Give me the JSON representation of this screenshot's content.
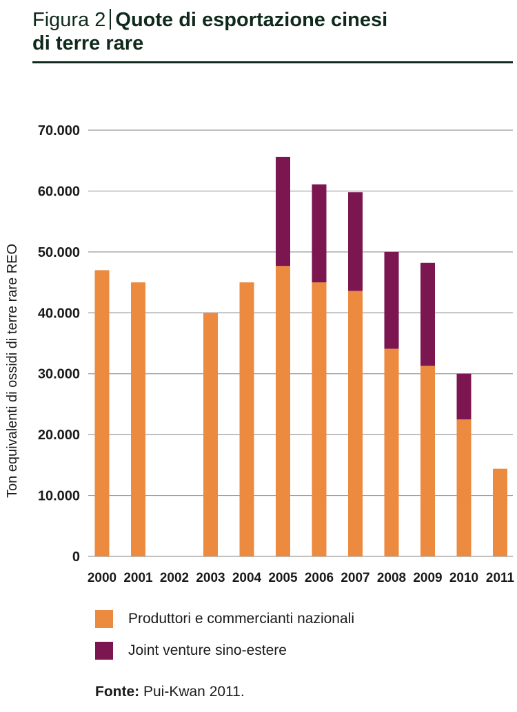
{
  "header": {
    "figure_number": "Figura 2",
    "title_line1": "Quote di esportazione cinesi",
    "title_line2": "di terre rare"
  },
  "colors": {
    "domestic": "#ec8a3f",
    "joint_venture": "#7b1650",
    "grid": "#9a9a9a",
    "axis_text": "#1a1a1a"
  },
  "chart_data": {
    "type": "bar",
    "stacked": true,
    "categories": [
      "2000",
      "2001",
      "2002",
      "2003",
      "2004",
      "2005",
      "2006",
      "2007",
      "2008",
      "2009",
      "2010",
      "2011"
    ],
    "series": [
      {
        "name": "Produttori e commercianti nazionali",
        "values": [
          47000,
          45000,
          0,
          40000,
          45000,
          47700,
          45000,
          43600,
          34100,
          31300,
          22500,
          14400
        ]
      },
      {
        "name": "Joint venture sino-estere",
        "values": [
          0,
          0,
          0,
          0,
          0,
          17900,
          16100,
          16200,
          15900,
          16900,
          7500,
          0
        ]
      }
    ],
    "ylabel": "Ton equivalenti di ossidi di terre rare REO",
    "xlabel": "",
    "ylim": [
      0,
      70000
    ],
    "yticks": [
      0,
      10000,
      20000,
      30000,
      40000,
      50000,
      60000,
      70000
    ],
    "ytick_labels": [
      "0",
      "10.000",
      "20.000",
      "30.000",
      "40.000",
      "50.000",
      "60.000",
      "70.000"
    ],
    "grid": true,
    "legend_position": "bottom"
  },
  "source": {
    "label": "Fonte:",
    "text": " Pui-Kwan 2011."
  }
}
